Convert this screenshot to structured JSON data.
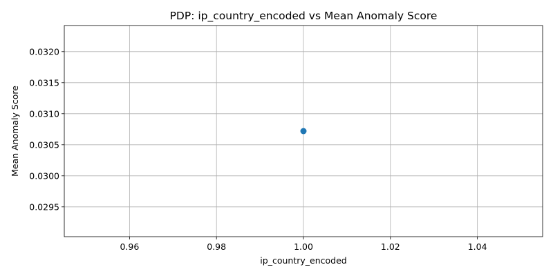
{
  "chart_data": {
    "type": "line",
    "title": "PDP: ip_country_encoded vs Mean Anomaly Score",
    "xlabel": "ip_country_encoded",
    "ylabel": "Mean Anomaly Score",
    "xlim": [
      0.945,
      1.055
    ],
    "ylim": [
      0.02902,
      0.03242
    ],
    "xticks": [
      0.96,
      0.98,
      1.0,
      1.02,
      1.04
    ],
    "xtick_labels": [
      "0.96",
      "0.98",
      "1.00",
      "1.02",
      "1.04"
    ],
    "yticks": [
      0.0295,
      0.03,
      0.0305,
      0.031,
      0.0315,
      0.032
    ],
    "ytick_labels": [
      "0.0295",
      "0.0300",
      "0.0305",
      "0.0310",
      "0.0315",
      "0.0320"
    ],
    "grid": true,
    "series": [
      {
        "x": [
          1.0
        ],
        "y": [
          0.03072
        ],
        "color": "#1f77b4",
        "marker": "circle"
      }
    ]
  }
}
